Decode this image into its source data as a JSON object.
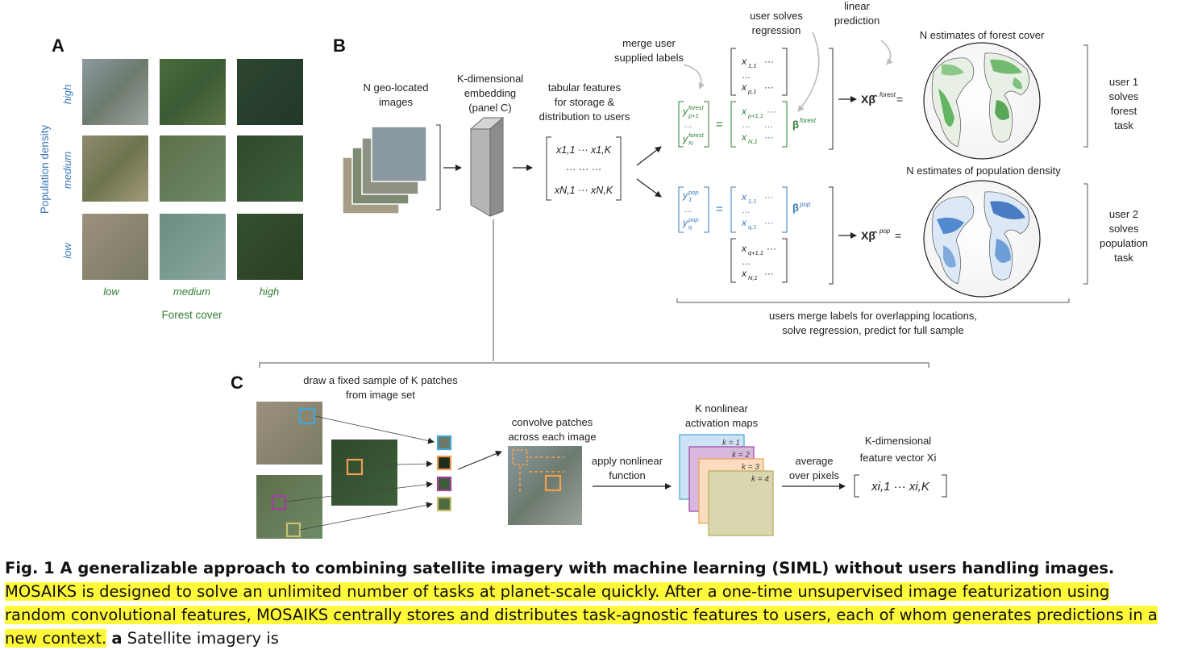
{
  "panels": {
    "a": {
      "letter": "A",
      "ylabel": "Population density",
      "row_labels": [
        "high",
        "medium",
        "low"
      ],
      "col_labels": [
        "low",
        "medium",
        "high"
      ],
      "xlabel": "Forest cover"
    },
    "b": {
      "letter": "B",
      "images_label": [
        "N geo-located",
        "images"
      ],
      "embed_label": [
        "K-dimensional",
        "embedding",
        "(panel C)"
      ],
      "tabular_label": [
        "tabular features",
        "for storage &",
        "distribution to users"
      ],
      "tab_matrix": [
        "x1,1 ··· x1,K",
        "··· ··· ···",
        "xN,1 ··· xN,K"
      ],
      "merge_label": [
        "merge user",
        "supplied labels"
      ],
      "solve_label": [
        "user solves",
        "regression"
      ],
      "predict_label": [
        "linear",
        "prediction"
      ],
      "forest_map_title": "N estimates of forest cover",
      "pop_map_title": "N estimates of population density",
      "user1": [
        "user 1",
        "solves",
        "forest",
        "task"
      ],
      "user2": [
        "user 2",
        "solves",
        "population",
        "task"
      ],
      "bottom_label": [
        "users merge labels for overlapping locations,",
        "solve regression, predict for full sample"
      ],
      "beta_forest": "β forest",
      "beta_pop": "β pop",
      "pred_forest": "Xβ̂ forest =",
      "pred_pop": "Xβ̂ pop ="
    },
    "c": {
      "letter": "C",
      "sample_label": [
        "draw a fixed sample of K patches",
        "from image set"
      ],
      "convolve_label": [
        "convolve patches",
        "across each image"
      ],
      "nonlinear_label": [
        "apply nonlinear",
        "function"
      ],
      "maps_label": [
        "K nonlinear",
        "activation maps"
      ],
      "map_k": [
        "k = 1",
        "k = 2",
        "k = 3",
        "k = 4"
      ],
      "average_label": [
        "average",
        "over pixels"
      ],
      "vector_label": [
        "K-dimensional",
        "feature vector Xi"
      ],
      "vector": "xi,1 ··· xi,K"
    }
  },
  "caption": {
    "title": "Fig. 1 A generalizable approach to combining satellite imagery with machine learning (SIML) without users handling images.",
    "highlighted": "MOSAIKS is designed to solve an unlimited number of tasks at planet-scale quickly. After a one-time unsupervised image featurization using random convolutional features, MOSAIKS centrally stores and distributes task-agnostic features to users, each of whom generates predictions in a new context.",
    "panel_a_letter": "a",
    "panel_a_text": "Satellite imagery is"
  },
  "colors": {
    "forest_green": "#2e7d32",
    "pop_blue": "#3a78b8",
    "highlight": "#fff93a",
    "patch_blue": "#3fa7d6",
    "patch_orange": "#f0a050",
    "patch_purple": "#a040a0",
    "patch_olive": "#c8c070",
    "map1": "#cde3f5",
    "map2": "#d8b8dc",
    "map3": "#fbdcc0",
    "map4": "#d9d6b0"
  }
}
